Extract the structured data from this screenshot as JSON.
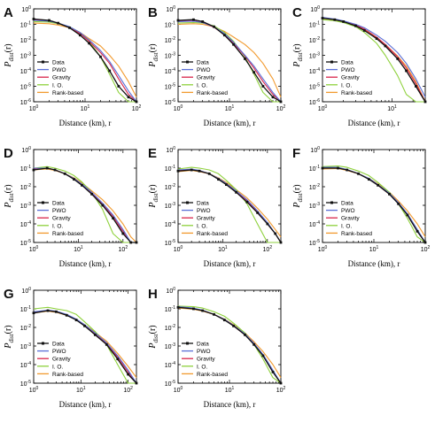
{
  "figure": {
    "ylabel_main": "P",
    "ylabel_sub": "dist",
    "ylabel_arg": "(r)",
    "xlabel": "Distance (km), r"
  },
  "colors": {
    "Data": "#111111",
    "PWO": "#5b6fd6",
    "Gravity": "#d8244a",
    "I. O.": "#8ed13c",
    "Rank-based": "#f29a2e"
  },
  "legend": [
    "Data",
    "PWO",
    "Gravity",
    "I. O.",
    "Rank-based"
  ],
  "chart_data": [
    {
      "type": "line",
      "panel": "A",
      "xscale": "log",
      "yscale": "log",
      "xlim": [
        1,
        100
      ],
      "ylim": [
        1e-06,
        1
      ],
      "xlabel": "Distance (km), r",
      "ylabel": "P_dist(r)",
      "legend_position": "lower-left",
      "x": [
        1,
        2,
        3,
        5,
        8,
        12,
        20,
        30,
        45,
        70,
        100
      ],
      "series": [
        {
          "name": "Data",
          "values": [
            0.22,
            0.18,
            0.12,
            0.06,
            0.02,
            0.006,
            0.0008,
            0.0001,
            1e-05,
            2e-06,
            1e-06
          ]
        },
        {
          "name": "PWO",
          "values": [
            0.18,
            0.16,
            0.12,
            0.07,
            0.03,
            0.01,
            0.002,
            0.0004,
            5e-05,
            5e-06,
            1e-06
          ]
        },
        {
          "name": "Gravity",
          "values": [
            0.2,
            0.17,
            0.12,
            0.06,
            0.025,
            0.008,
            0.0015,
            0.0003,
            3e-05,
            3e-06,
            1e-06
          ]
        },
        {
          "name": "I. O.",
          "values": [
            0.15,
            0.14,
            0.11,
            0.07,
            0.03,
            0.008,
            0.0008,
            6e-05,
            4e-06,
            1e-06,
            1e-06
          ]
        },
        {
          "name": "Rank-based",
          "values": [
            0.12,
            0.11,
            0.09,
            0.06,
            0.03,
            0.012,
            0.004,
            0.001,
            0.0002,
            2e-05,
            2e-06
          ]
        }
      ]
    },
    {
      "type": "line",
      "panel": "B",
      "xscale": "log",
      "yscale": "log",
      "xlim": [
        1,
        100
      ],
      "ylim": [
        1e-06,
        1
      ],
      "xlabel": "Distance (km), r",
      "ylabel": "P_dist(r)",
      "legend_position": "lower-left",
      "x": [
        1,
        2,
        3,
        5,
        8,
        12,
        20,
        30,
        45,
        70,
        100
      ],
      "series": [
        {
          "name": "Data",
          "values": [
            0.18,
            0.2,
            0.15,
            0.07,
            0.02,
            0.005,
            0.0006,
            8e-05,
            1e-05,
            2e-06,
            1e-06
          ]
        },
        {
          "name": "PWO",
          "values": [
            0.15,
            0.16,
            0.13,
            0.07,
            0.025,
            0.007,
            0.001,
            0.0002,
            3e-05,
            4e-06,
            1e-06
          ]
        },
        {
          "name": "Gravity",
          "values": [
            0.16,
            0.17,
            0.13,
            0.065,
            0.022,
            0.006,
            0.0009,
            0.00015,
            2e-05,
            3e-06,
            1e-06
          ]
        },
        {
          "name": "I. O.",
          "values": [
            0.12,
            0.13,
            0.12,
            0.08,
            0.03,
            0.008,
            0.0008,
            6e-05,
            4e-06,
            1e-06,
            1e-06
          ]
        },
        {
          "name": "Rank-based",
          "values": [
            0.1,
            0.11,
            0.1,
            0.07,
            0.035,
            0.015,
            0.005,
            0.0015,
            0.0003,
            3e-05,
            2e-06
          ]
        }
      ]
    },
    {
      "type": "line",
      "panel": "C",
      "xscale": "log",
      "yscale": "log",
      "xlim": [
        1,
        30
      ],
      "ylim": [
        1e-06,
        1
      ],
      "xlabel": "Distance (km), r",
      "ylabel": "P_dist(r)",
      "legend_position": "lower-left",
      "x": [
        1,
        1.5,
        2,
        3,
        4,
        6,
        8,
        12,
        16,
        22,
        30
      ],
      "series": [
        {
          "name": "Data",
          "values": [
            0.25,
            0.2,
            0.15,
            0.08,
            0.04,
            0.012,
            0.004,
            0.0006,
            0.0001,
            1e-05,
            1e-06
          ]
        },
        {
          "name": "PWO",
          "values": [
            0.28,
            0.22,
            0.17,
            0.1,
            0.06,
            0.02,
            0.008,
            0.0015,
            0.0003,
            3e-05,
            2e-06
          ]
        },
        {
          "name": "Gravity",
          "values": [
            0.26,
            0.2,
            0.15,
            0.09,
            0.05,
            0.015,
            0.005,
            0.0008,
            0.00015,
            1.5e-05,
            1e-06
          ]
        },
        {
          "name": "I. O.",
          "values": [
            0.2,
            0.17,
            0.13,
            0.07,
            0.03,
            0.006,
            0.001,
            5e-05,
            3e-06,
            1e-06,
            1e-06
          ]
        },
        {
          "name": "Rank-based",
          "values": [
            0.24,
            0.19,
            0.15,
            0.085,
            0.045,
            0.014,
            0.005,
            0.0009,
            0.0002,
            2e-05,
            1e-06
          ]
        }
      ]
    },
    {
      "type": "line",
      "panel": "D",
      "xscale": "log",
      "yscale": "log",
      "xlim": [
        1,
        200
      ],
      "ylim": [
        1e-05,
        1
      ],
      "xlabel": "Distance (km), r",
      "ylabel": "P_dist(r)",
      "legend_position": "lower-left",
      "x": [
        1,
        2,
        3,
        5,
        8,
        12,
        20,
        35,
        60,
        100,
        150,
        200
      ],
      "series": [
        {
          "name": "Data",
          "values": [
            0.08,
            0.1,
            0.08,
            0.05,
            0.025,
            0.012,
            0.004,
            0.001,
            0.0002,
            3e-05,
            1e-05,
            1e-05
          ]
        },
        {
          "name": "PWO",
          "values": [
            0.1,
            0.1,
            0.08,
            0.05,
            0.028,
            0.014,
            0.005,
            0.0013,
            0.0003,
            5e-05,
            1e-05,
            1e-05
          ]
        },
        {
          "name": "Gravity",
          "values": [
            0.09,
            0.1,
            0.08,
            0.05,
            0.027,
            0.013,
            0.0045,
            0.0012,
            0.00025,
            4e-05,
            1e-05,
            1e-05
          ]
        },
        {
          "name": "I. O.",
          "values": [
            0.1,
            0.12,
            0.1,
            0.07,
            0.04,
            0.018,
            0.005,
            0.0006,
            3e-05,
            1e-05,
            1e-05,
            1e-05
          ]
        },
        {
          "name": "Rank-based",
          "values": [
            0.08,
            0.09,
            0.075,
            0.05,
            0.03,
            0.016,
            0.006,
            0.002,
            0.0005,
            0.0001,
            2e-05,
            1e-05
          ]
        }
      ]
    },
    {
      "type": "line",
      "panel": "E",
      "xscale": "log",
      "yscale": "log",
      "xlim": [
        1,
        200
      ],
      "ylim": [
        1e-05,
        1
      ],
      "xlabel": "Distance (km), r",
      "ylabel": "P_dist(r)",
      "legend_position": "lower-left",
      "x": [
        1,
        2,
        3,
        5,
        8,
        12,
        20,
        35,
        60,
        100,
        150,
        200
      ],
      "series": [
        {
          "name": "Data",
          "values": [
            0.07,
            0.08,
            0.07,
            0.05,
            0.025,
            0.013,
            0.005,
            0.0015,
            0.0004,
            0.0001,
            3e-05,
            1e-05
          ]
        },
        {
          "name": "PWO",
          "values": [
            0.08,
            0.09,
            0.075,
            0.05,
            0.028,
            0.015,
            0.006,
            0.002,
            0.0005,
            0.00012,
            3e-05,
            1e-05
          ]
        },
        {
          "name": "Gravity",
          "values": [
            0.075,
            0.085,
            0.07,
            0.05,
            0.026,
            0.014,
            0.0055,
            0.0018,
            0.00045,
            0.0001,
            3e-05,
            1e-05
          ]
        },
        {
          "name": "I. O.",
          "values": [
            0.09,
            0.11,
            0.1,
            0.08,
            0.05,
            0.022,
            0.007,
            0.0012,
            0.0001,
            1e-05,
            1e-05,
            1e-05
          ]
        },
        {
          "name": "Rank-based",
          "values": [
            0.065,
            0.075,
            0.065,
            0.05,
            0.03,
            0.017,
            0.007,
            0.0025,
            0.0007,
            0.00018,
            5e-05,
            2e-05
          ]
        }
      ]
    },
    {
      "type": "line",
      "panel": "F",
      "xscale": "log",
      "yscale": "log",
      "xlim": [
        1,
        100
      ],
      "ylim": [
        1e-05,
        1
      ],
      "xlabel": "Distance (km), r",
      "ylabel": "P_dist(r)",
      "legend_position": "lower-left",
      "x": [
        1,
        2,
        3,
        5,
        8,
        12,
        20,
        30,
        45,
        70,
        100
      ],
      "series": [
        {
          "name": "Data",
          "values": [
            0.1,
            0.1,
            0.08,
            0.05,
            0.025,
            0.012,
            0.004,
            0.0012,
            0.0003,
            4e-05,
            1e-05
          ]
        },
        {
          "name": "PWO",
          "values": [
            0.11,
            0.11,
            0.085,
            0.05,
            0.028,
            0.013,
            0.0045,
            0.0014,
            0.00035,
            5e-05,
            1e-05
          ]
        },
        {
          "name": "Gravity",
          "values": [
            0.1,
            0.105,
            0.08,
            0.05,
            0.026,
            0.012,
            0.004,
            0.0013,
            0.0003,
            4e-05,
            1e-05
          ]
        },
        {
          "name": "I. O.",
          "values": [
            0.12,
            0.13,
            0.11,
            0.07,
            0.04,
            0.017,
            0.005,
            0.0012,
            0.0002,
            2e-05,
            1e-05
          ]
        },
        {
          "name": "Rank-based",
          "values": [
            0.09,
            0.095,
            0.075,
            0.05,
            0.028,
            0.014,
            0.005,
            0.0017,
            0.0005,
            0.0001,
            2e-05
          ]
        }
      ]
    },
    {
      "type": "line",
      "panel": "G",
      "xscale": "log",
      "yscale": "log",
      "xlim": [
        1,
        150
      ],
      "ylim": [
        1e-05,
        1
      ],
      "xlabel": "Distance (km), r",
      "ylabel": "P_dist(r)",
      "legend_position": "lower-left",
      "x": [
        1,
        2,
        3,
        5,
        8,
        12,
        20,
        35,
        60,
        100,
        150
      ],
      "series": [
        {
          "name": "Data",
          "values": [
            0.06,
            0.08,
            0.07,
            0.045,
            0.025,
            0.012,
            0.004,
            0.0012,
            0.0002,
            3e-05,
            1e-05
          ]
        },
        {
          "name": "PWO",
          "values": [
            0.07,
            0.085,
            0.075,
            0.05,
            0.028,
            0.014,
            0.005,
            0.0015,
            0.0003,
            5e-05,
            1e-05
          ]
        },
        {
          "name": "Gravity",
          "values": [
            0.065,
            0.08,
            0.07,
            0.047,
            0.026,
            0.013,
            0.0045,
            0.0013,
            0.00025,
            4e-05,
            1e-05
          ]
        },
        {
          "name": "I. O.",
          "values": [
            0.1,
            0.12,
            0.1,
            0.08,
            0.05,
            0.02,
            0.006,
            0.0012,
            0.0001,
            1e-05,
            1e-05
          ]
        },
        {
          "name": "Rank-based",
          "values": [
            0.06,
            0.075,
            0.065,
            0.045,
            0.027,
            0.014,
            0.0055,
            0.0018,
            0.0004,
            8e-05,
            2e-05
          ]
        }
      ]
    },
    {
      "type": "line",
      "panel": "H",
      "xscale": "log",
      "yscale": "log",
      "xlim": [
        1,
        100
      ],
      "ylim": [
        1e-05,
        1
      ],
      "xlabel": "Distance (km), r",
      "ylabel": "P_dist(r)",
      "legend_position": "lower-left",
      "x": [
        1,
        2,
        3,
        5,
        8,
        12,
        20,
        30,
        45,
        70,
        100
      ],
      "series": [
        {
          "name": "Data",
          "values": [
            0.12,
            0.1,
            0.08,
            0.05,
            0.025,
            0.012,
            0.004,
            0.0012,
            0.0003,
            4e-05,
            1e-05
          ]
        },
        {
          "name": "PWO",
          "values": [
            0.13,
            0.11,
            0.085,
            0.05,
            0.027,
            0.013,
            0.0045,
            0.0014,
            0.00035,
            5e-05,
            1e-05
          ]
        },
        {
          "name": "Gravity",
          "values": [
            0.12,
            0.105,
            0.08,
            0.05,
            0.026,
            0.012,
            0.004,
            0.0013,
            0.0003,
            4e-05,
            1e-05
          ]
        },
        {
          "name": "I. O.",
          "values": [
            0.14,
            0.13,
            0.11,
            0.07,
            0.04,
            0.017,
            0.005,
            0.0012,
            0.0002,
            2e-05,
            1e-05
          ]
        },
        {
          "name": "Rank-based",
          "values": [
            0.11,
            0.095,
            0.075,
            0.05,
            0.028,
            0.014,
            0.005,
            0.0017,
            0.0005,
            0.0001,
            2e-05
          ]
        }
      ]
    }
  ]
}
